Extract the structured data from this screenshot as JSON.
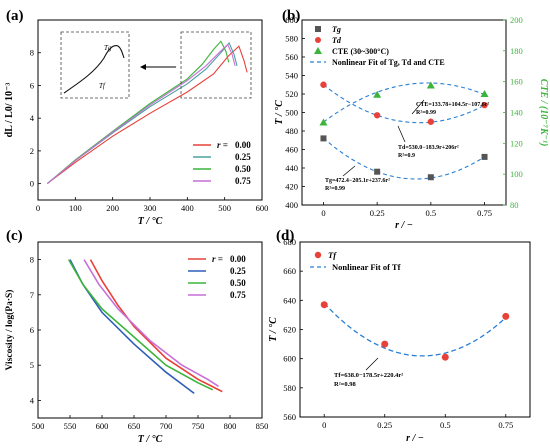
{
  "panels": {
    "a": {
      "label": "(a)"
    },
    "b": {
      "label": "(b)"
    },
    "c": {
      "label": "(c)"
    },
    "d": {
      "label": "(d)"
    }
  },
  "chart_data": [
    {
      "id": "a",
      "type": "line",
      "xlabel": "T / °C",
      "ylabel": "dL / L0/ 10⁻³",
      "xlim": [
        0,
        600
      ],
      "ylim": [
        -1,
        10
      ],
      "xticks": [
        0,
        100,
        200,
        300,
        400,
        500,
        600
      ],
      "yticks": [
        0,
        2,
        4,
        6,
        8
      ],
      "legend_title": "r =",
      "inset_labels": [
        "Tg",
        "Tf"
      ],
      "series": [
        {
          "name": "0.00",
          "color": "#e8413a",
          "points": [
            [
              25,
              0
            ],
            [
              100,
              1.3
            ],
            [
              200,
              2.9
            ],
            [
              300,
              4.3
            ],
            [
              400,
              5.6
            ],
            [
              470,
              6.7
            ],
            [
              510,
              7.8
            ],
            [
              538,
              8.4
            ],
            [
              552,
              7.5
            ],
            [
              560,
              6.8
            ]
          ]
        },
        {
          "name": "0.25",
          "color": "#4aa0a0",
          "points": [
            [
              25,
              0
            ],
            [
              100,
              1.4
            ],
            [
              200,
              3.1
            ],
            [
              300,
              4.7
            ],
            [
              400,
              6.1
            ],
            [
              450,
              7.0
            ],
            [
              490,
              8.0
            ],
            [
              512,
              8.6
            ],
            [
              525,
              7.9
            ],
            [
              533,
              7.2
            ]
          ]
        },
        {
          "name": "0.50",
          "color": "#3cb43c",
          "points": [
            [
              25,
              0
            ],
            [
              100,
              1.45
            ],
            [
              200,
              3.2
            ],
            [
              300,
              4.9
            ],
            [
              400,
              6.4
            ],
            [
              440,
              7.3
            ],
            [
              470,
              8.2
            ],
            [
              490,
              8.7
            ],
            [
              503,
              8.1
            ],
            [
              511,
              7.4
            ]
          ]
        },
        {
          "name": "0.75",
          "color": "#c76fd8",
          "points": [
            [
              25,
              0
            ],
            [
              100,
              1.4
            ],
            [
              200,
              3.15
            ],
            [
              300,
              4.8
            ],
            [
              400,
              6.3
            ],
            [
              450,
              7.2
            ],
            [
              485,
              8.0
            ],
            [
              508,
              8.5
            ],
            [
              520,
              7.9
            ],
            [
              528,
              7.2
            ]
          ]
        }
      ]
    },
    {
      "id": "b",
      "type": "scatter",
      "xlabel": "r / −",
      "ylabel": "T / °C",
      "ylabel_right": "CTE / (10⁻⁷K⁻¹)",
      "xlim": [
        -0.1,
        0.85
      ],
      "ylim": [
        400,
        600
      ],
      "ylim_right": [
        80,
        200
      ],
      "xticks": [
        0,
        0.25,
        0.5,
        0.75
      ],
      "yticks": [
        400,
        420,
        440,
        460,
        480,
        500,
        520,
        540,
        560,
        580,
        600
      ],
      "yticks_right": [
        80,
        100,
        120,
        140,
        160,
        180,
        200
      ],
      "legend": [
        "Tg",
        "Td",
        "CTE (30~300°C)",
        "Nonlinear Fit of Tg, Td and CTE"
      ],
      "series": [
        {
          "name": "Tg",
          "color": "#555555",
          "marker": "square",
          "x": [
            0,
            0.25,
            0.5,
            0.75
          ],
          "y": [
            472,
            436,
            430,
            452
          ]
        },
        {
          "name": "Td",
          "color": "#e8413a",
          "marker": "circle",
          "x": [
            0,
            0.25,
            0.5,
            0.75
          ],
          "y": [
            530,
            497,
            490,
            508
          ]
        },
        {
          "name": "CTE (30~300°C)",
          "color": "#3cb43c",
          "marker": "triangle",
          "axis": "right",
          "x": [
            0,
            0.25,
            0.5,
            0.75
          ],
          "y": [
            133.5,
            151.5,
            157.5,
            152
          ]
        }
      ],
      "fits": [
        {
          "name": "Tg fit",
          "axis": "left",
          "coef": [
            472.4,
            -205.1,
            237.6
          ]
        },
        {
          "name": "Td fit",
          "axis": "left",
          "coef": [
            530.0,
            -183.9,
            206
          ]
        },
        {
          "name": "CTE fit",
          "axis": "right",
          "coef": [
            133.78,
            104.5,
            -107.6
          ]
        }
      ],
      "annotations": [
        {
          "text": "CTE=133.78+104.5r−107.6r²",
          "sub": "R²=0.99"
        },
        {
          "text": "Td=530.0−183.9r+206r²",
          "sub": "R²=0.9"
        },
        {
          "text": "Tg=472.4−205.1r+237.6r²",
          "sub": "R²=0.99"
        }
      ]
    },
    {
      "id": "c",
      "type": "line",
      "xlabel": "T / °C",
      "ylabel": "Viscosity / log(Pa·S)",
      "xlim": [
        500,
        850
      ],
      "ylim": [
        3.5,
        8.5
      ],
      "xticks": [
        500,
        550,
        600,
        650,
        700,
        750,
        800,
        850
      ],
      "yticks": [
        4,
        5,
        6,
        7,
        8
      ],
      "legend_title": "r =",
      "series": [
        {
          "name": "0.00",
          "color": "#e8413a",
          "points": [
            [
              582,
              8.0
            ],
            [
              600,
              7.4
            ],
            [
              625,
              6.7
            ],
            [
              650,
              6.1
            ],
            [
              700,
              5.2
            ],
            [
              750,
              4.6
            ],
            [
              788,
              4.25
            ]
          ]
        },
        {
          "name": "0.25",
          "color": "#2e5fb8",
          "points": [
            [
              550,
              8.0
            ],
            [
              570,
              7.3
            ],
            [
              600,
              6.5
            ],
            [
              650,
              5.6
            ],
            [
              700,
              4.8
            ],
            [
              744,
              4.2
            ]
          ]
        },
        {
          "name": "0.50",
          "color": "#3cb43c",
          "points": [
            [
              548,
              8.0
            ],
            [
              570,
              7.3
            ],
            [
              600,
              6.6
            ],
            [
              650,
              5.8
            ],
            [
              700,
              5.0
            ],
            [
              750,
              4.5
            ],
            [
              773,
              4.3
            ]
          ]
        },
        {
          "name": "0.75",
          "color": "#c76fd8",
          "points": [
            [
              572,
              8.0
            ],
            [
              595,
              7.3
            ],
            [
              625,
              6.6
            ],
            [
              675,
              5.7
            ],
            [
              725,
              5.0
            ],
            [
              765,
              4.6
            ],
            [
              782,
              4.4
            ]
          ]
        }
      ]
    },
    {
      "id": "d",
      "type": "scatter",
      "xlabel": "r / −",
      "ylabel": "T / °C",
      "xlim": [
        -0.1,
        0.85
      ],
      "ylim": [
        560,
        680
      ],
      "xticks": [
        0,
        0.25,
        0.5,
        0.75
      ],
      "yticks": [
        560,
        580,
        600,
        620,
        640,
        660,
        680
      ],
      "legend": [
        "Tf",
        "Nonlinear Fit of Tf"
      ],
      "series": [
        {
          "name": "Tf",
          "color": "#e8413a",
          "marker": "circle",
          "x": [
            0,
            0.25,
            0.5,
            0.75
          ],
          "y": [
            637,
            610,
            601,
            629
          ]
        }
      ],
      "fits": [
        {
          "name": "Tf fit",
          "coef": [
            638.0,
            -178.5,
            220.4
          ]
        }
      ],
      "annotations": [
        {
          "text": "Tf=638.0−178.5r+220.4r²",
          "sub": "R²=0.98"
        }
      ]
    }
  ]
}
